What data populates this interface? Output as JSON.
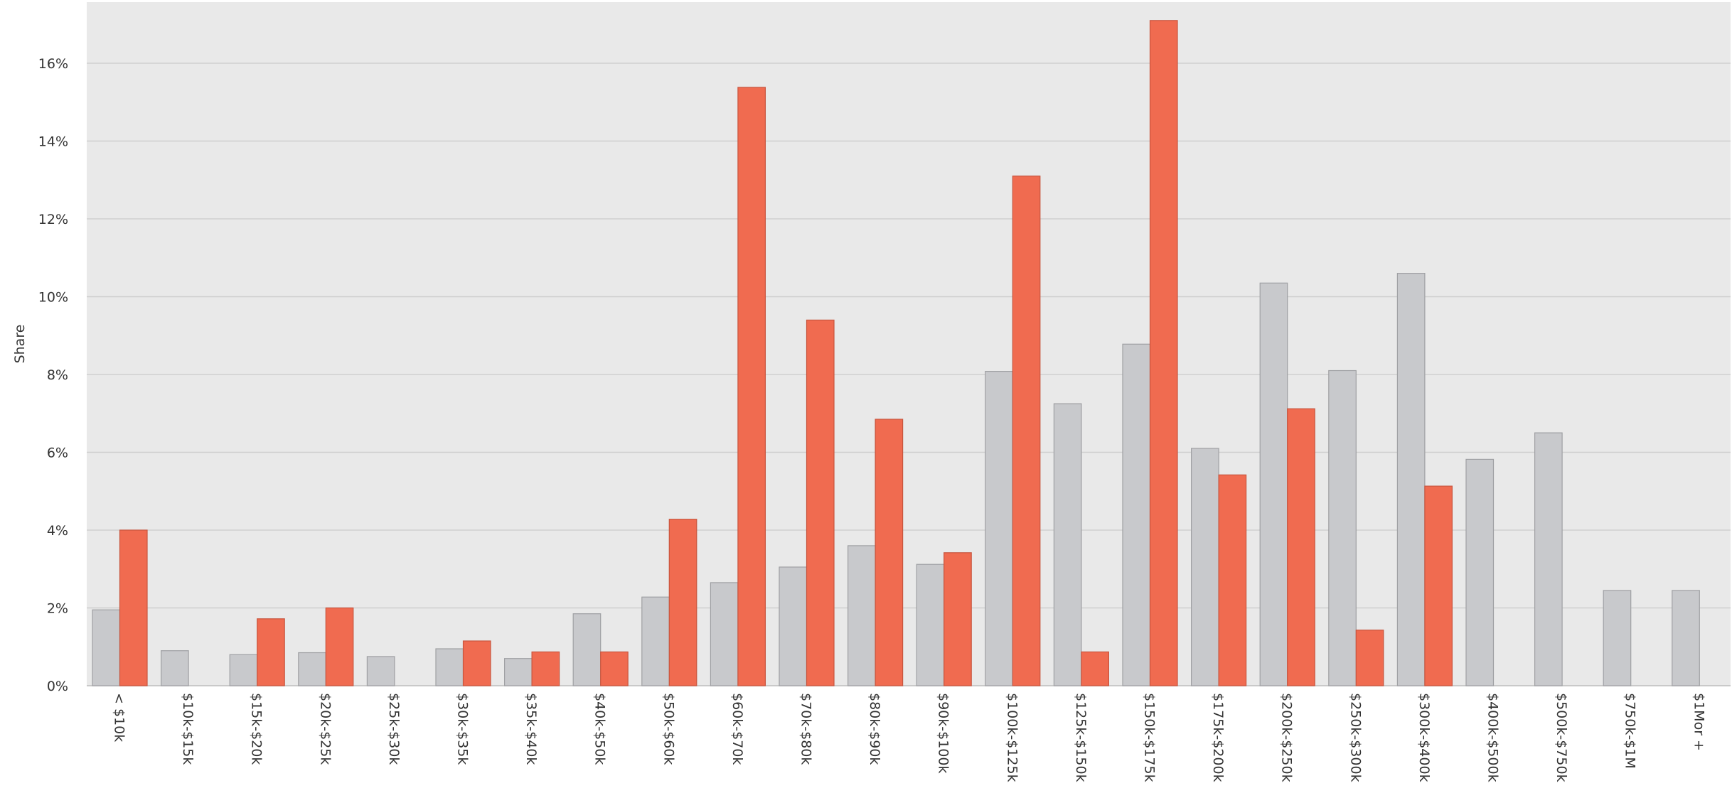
{
  "chart_data": {
    "type": "bar",
    "title": "",
    "xlabel": "",
    "ylabel": "Share",
    "ylim": [
      0,
      17.6
    ],
    "yticks": [
      "0%",
      "2%",
      "4%",
      "6%",
      "8%",
      "10%",
      "12%",
      "14%",
      "16%"
    ],
    "ytick_values": [
      0,
      2,
      4,
      6,
      8,
      10,
      12,
      14,
      16
    ],
    "grid": true,
    "legend": "none",
    "categories": [
      "< $10k",
      "$10k-$15k",
      "$15k-$20k",
      "$20k-$25k",
      "$25k-$30k",
      "$30k-$35k",
      "$35k-$40k",
      "$40k-$50k",
      "$50k-$60k",
      "$60k-$70k",
      "$70k-$80k",
      "$80k-$90k",
      "$90k-$100k",
      "$100k-$125k",
      "$125k-$150k",
      "$150k-$175k",
      "$175k-$200k",
      "$200k-$250k",
      "$250k-$300k",
      "$300k-$400k",
      "$400k-$500k",
      "$500k-$750k",
      "$750k-$1M",
      "$1Mor +"
    ],
    "series": [
      {
        "color": "#c8c9cc",
        "stroke": "#9fa0a3",
        "values": [
          1.95,
          0.9,
          0.8,
          0.85,
          0.75,
          0.95,
          0.7,
          1.85,
          2.28,
          2.65,
          3.05,
          3.6,
          3.12,
          8.08,
          7.25,
          8.78,
          6.1,
          10.35,
          8.1,
          10.6,
          5.82,
          6.5,
          2.45,
          2.45
        ]
      },
      {
        "color": "#f06b50",
        "stroke": "#c9553e",
        "values": [
          4.0,
          null,
          1.72,
          2.0,
          null,
          1.15,
          0.87,
          0.87,
          4.28,
          15.38,
          9.4,
          6.85,
          3.42,
          13.1,
          0.87,
          17.1,
          5.42,
          7.12,
          1.43,
          5.13,
          null,
          null,
          null,
          null
        ]
      }
    ]
  }
}
